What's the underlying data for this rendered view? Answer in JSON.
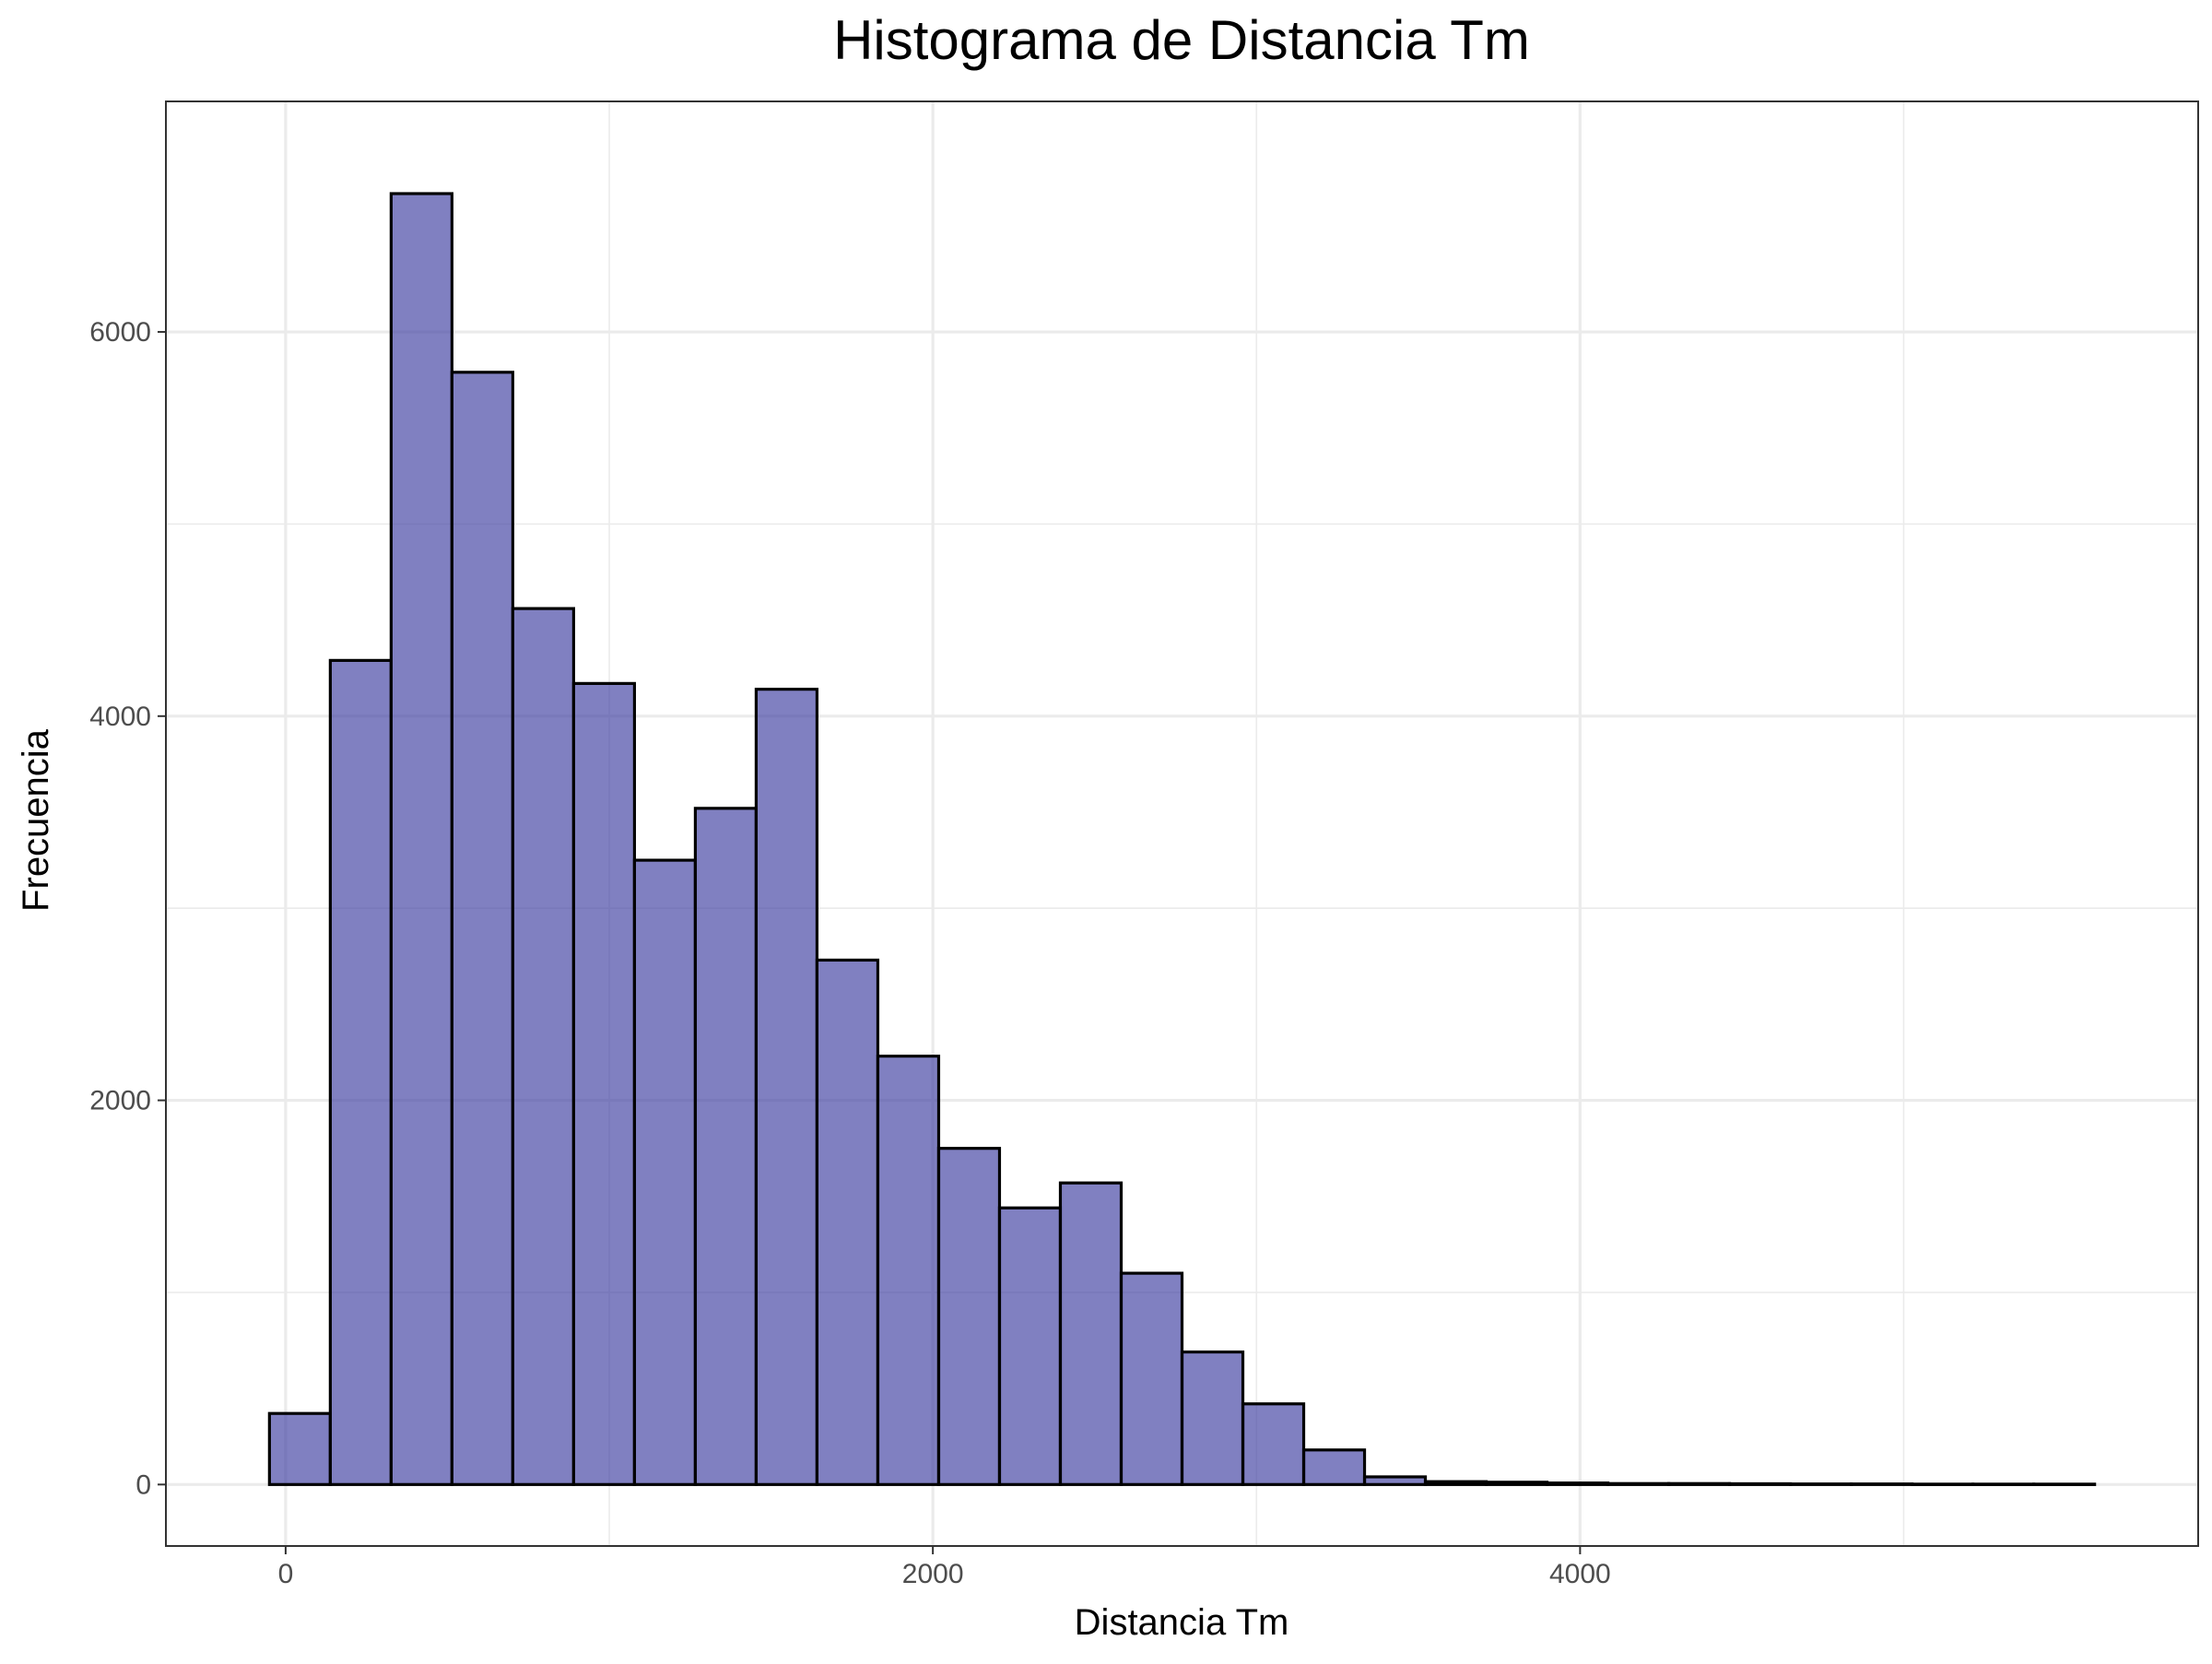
{
  "chart_data": {
    "type": "bar",
    "title": "Histograma de Distancia Tm",
    "xlabel": "Distancia Tm",
    "ylabel": "Frecuencia",
    "bar_color": "#3c3ca0",
    "bar_opacity": 0.65,
    "bar_outline": "#000000",
    "grid": true,
    "bin_width": 188,
    "bins": [
      {
        "x_start": -50,
        "x_end": 138,
        "count": 370
      },
      {
        "x_start": 138,
        "x_end": 326,
        "count": 4290
      },
      {
        "x_start": 326,
        "x_end": 514,
        "count": 6720
      },
      {
        "x_start": 514,
        "x_end": 702,
        "count": 5790
      },
      {
        "x_start": 702,
        "x_end": 890,
        "count": 4560
      },
      {
        "x_start": 890,
        "x_end": 1078,
        "count": 4170
      },
      {
        "x_start": 1078,
        "x_end": 1266,
        "count": 3250
      },
      {
        "x_start": 1266,
        "x_end": 1454,
        "count": 3520
      },
      {
        "x_start": 1454,
        "x_end": 1642,
        "count": 4140
      },
      {
        "x_start": 1642,
        "x_end": 1830,
        "count": 2730
      },
      {
        "x_start": 1830,
        "x_end": 2018,
        "count": 2230
      },
      {
        "x_start": 2018,
        "x_end": 2206,
        "count": 1750
      },
      {
        "x_start": 2206,
        "x_end": 2394,
        "count": 1440
      },
      {
        "x_start": 2394,
        "x_end": 2582,
        "count": 1570
      },
      {
        "x_start": 2582,
        "x_end": 2770,
        "count": 1100
      },
      {
        "x_start": 2770,
        "x_end": 2958,
        "count": 690
      },
      {
        "x_start": 2958,
        "x_end": 3146,
        "count": 420
      },
      {
        "x_start": 3146,
        "x_end": 3334,
        "count": 180
      },
      {
        "x_start": 3334,
        "x_end": 3522,
        "count": 40
      },
      {
        "x_start": 3522,
        "x_end": 3710,
        "count": 15
      },
      {
        "x_start": 3710,
        "x_end": 3898,
        "count": 12
      },
      {
        "x_start": 3898,
        "x_end": 4086,
        "count": 8
      },
      {
        "x_start": 4086,
        "x_end": 4274,
        "count": 5
      },
      {
        "x_start": 4274,
        "x_end": 4462,
        "count": 5
      },
      {
        "x_start": 4462,
        "x_end": 4650,
        "count": 4
      },
      {
        "x_start": 4650,
        "x_end": 4838,
        "count": 3
      },
      {
        "x_start": 4838,
        "x_end": 5026,
        "count": 3
      },
      {
        "x_start": 5026,
        "x_end": 5214,
        "count": 2
      },
      {
        "x_start": 5214,
        "x_end": 5402,
        "count": 2
      },
      {
        "x_start": 5402,
        "x_end": 5590,
        "count": 2
      }
    ],
    "xlim": [
      -370,
      5910
    ],
    "ylim": [
      -320,
      7200
    ],
    "x_ticks": [
      0,
      2000,
      4000
    ],
    "x_tick_labels": [
      "0",
      "2000",
      "4000"
    ],
    "x_minor_ticks": [
      1000,
      3000,
      5000
    ],
    "y_ticks": [
      0,
      2000,
      4000,
      6000
    ],
    "y_tick_labels": [
      "0",
      "2000",
      "4000",
      "6000"
    ],
    "y_minor_ticks": [
      1000,
      3000,
      5000
    ]
  }
}
